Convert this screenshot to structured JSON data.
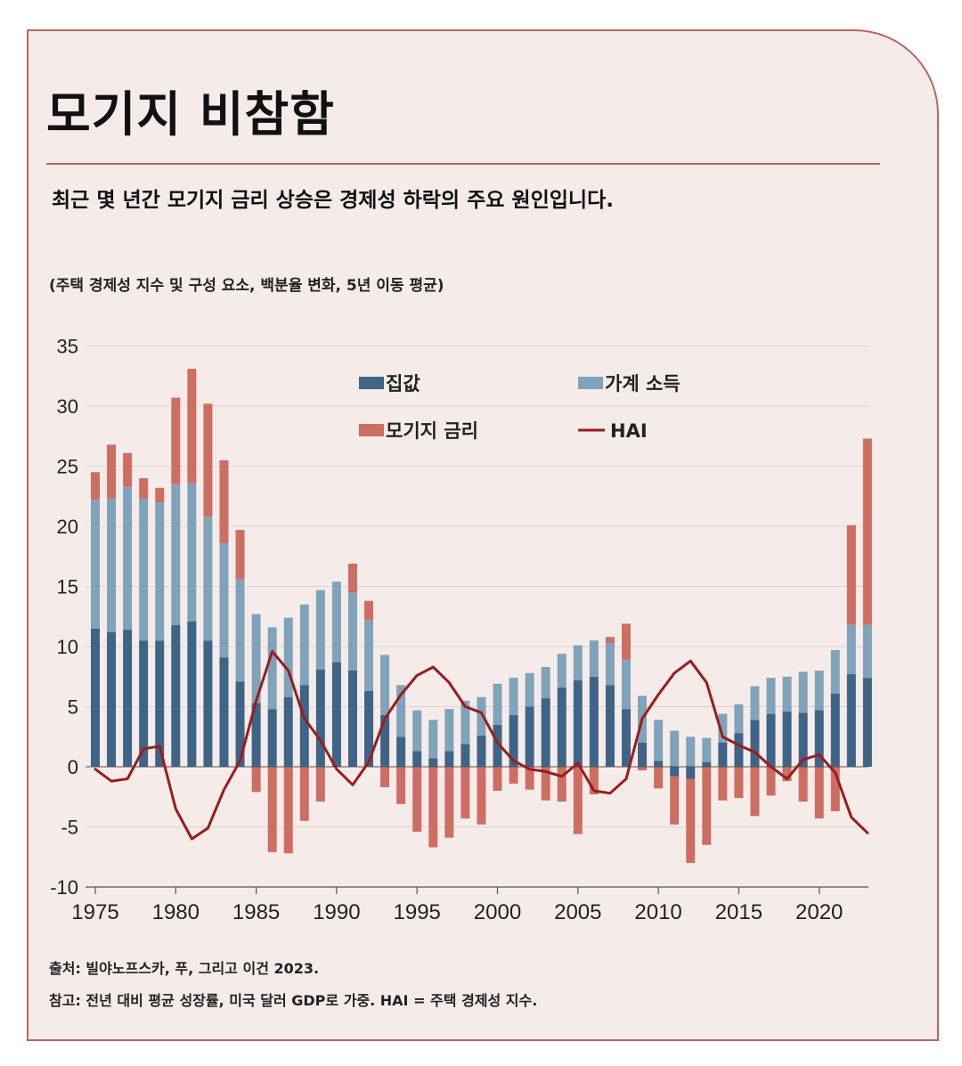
{
  "title": "모기지 비참함",
  "subtitle": "최근 몇 년간 모기지 금리 상승은 경제성 하락의 주요 원인입니다.",
  "note": "(주택 경제성 지수 및 구성 요소, 백분율 변화, 5년 이동 평균)",
  "footnotes": {
    "source": "출처: 빌야노프스카, 푸, 그리고 이건 2023.",
    "note": "참고: 전년 대비 평균 성장률, 미국 달러 GDP로 가중. HAI = 주택 경제성 지수."
  },
  "colors": {
    "house_price": "#3e6487",
    "household_income": "#7fa3bb",
    "mortgage_rate": "#cd6e62",
    "hai": "#9b1c1c",
    "card_bg": "#f5ecea",
    "border": "#b7675f"
  },
  "chart_data": {
    "type": "bar",
    "stacked": true,
    "x": [
      1975,
      1976,
      1977,
      1978,
      1979,
      1980,
      1981,
      1982,
      1983,
      1984,
      1985,
      1986,
      1987,
      1988,
      1989,
      1990,
      1991,
      1992,
      1993,
      1994,
      1995,
      1996,
      1997,
      1998,
      1999,
      2000,
      2001,
      2002,
      2003,
      2004,
      2005,
      2006,
      2007,
      2008,
      2009,
      2010,
      2011,
      2012,
      2013,
      2014,
      2015,
      2016,
      2017,
      2018,
      2019,
      2020,
      2021,
      2022,
      2023
    ],
    "x_ticks": [
      "1975",
      "1980",
      "1985",
      "1990",
      "1995",
      "2000",
      "2005",
      "2010",
      "2015",
      "2020"
    ],
    "y_ticks": [
      "35",
      "30",
      "25",
      "20",
      "15",
      "10",
      "5",
      "0",
      "-5",
      "-10"
    ],
    "ylim": [
      -10,
      35
    ],
    "grid": "horizontal",
    "legend_position": "top-center",
    "series": [
      {
        "name": "집값",
        "kind": "bar",
        "color": "#3e6487",
        "values": [
          11.5,
          11.2,
          11.4,
          10.5,
          10.5,
          11.8,
          12.1,
          10.5,
          9.1,
          7.1,
          5.3,
          4.8,
          5.8,
          6.8,
          8.1,
          8.7,
          8.0,
          6.3,
          4.3,
          2.5,
          1.3,
          0.7,
          1.3,
          1.9,
          2.6,
          3.5,
          4.3,
          5.0,
          5.7,
          6.6,
          7.2,
          7.5,
          6.8,
          4.8,
          2.0,
          0.5,
          -0.8,
          -1.0,
          0.4,
          2.0,
          2.8,
          3.9,
          4.4,
          4.6,
          4.5,
          4.7,
          6.1,
          7.7,
          7.4
        ]
      },
      {
        "name": "가계 소득",
        "kind": "bar",
        "color": "#7fa3bb",
        "values": [
          10.7,
          11.1,
          11.9,
          11.8,
          11.5,
          11.7,
          11.5,
          10.3,
          9.5,
          8.5,
          7.4,
          6.8,
          6.6,
          6.7,
          6.6,
          6.7,
          6.5,
          5.9,
          5.0,
          4.3,
          3.4,
          3.2,
          3.5,
          3.6,
          3.2,
          3.4,
          3.1,
          2.8,
          2.6,
          2.8,
          2.9,
          3.0,
          3.5,
          4.1,
          3.9,
          3.4,
          3.0,
          2.5,
          2.0,
          2.4,
          2.4,
          2.8,
          3.0,
          2.9,
          3.4,
          3.3,
          3.6,
          4.1,
          4.4
        ]
      },
      {
        "name": "모기지 금리",
        "kind": "bar",
        "color": "#cd6e62",
        "values": [
          2.3,
          4.5,
          2.8,
          1.7,
          1.2,
          7.2,
          9.5,
          9.4,
          6.9,
          4.1,
          -2.1,
          -7.1,
          -7.2,
          -4.5,
          -2.9,
          0,
          2.4,
          1.6,
          -1.7,
          -3.1,
          -5.4,
          -6.7,
          -5.9,
          -4.3,
          -4.8,
          -2.0,
          -1.4,
          -1.9,
          -2.8,
          -2.9,
          -5.6,
          -2.3,
          0.5,
          3.0,
          -0.3,
          -1.8,
          -4.0,
          -7.0,
          -6.5,
          -2.8,
          -2.6,
          -4.1,
          -2.4,
          -1.2,
          -2.9,
          -4.3,
          -3.7,
          8.3,
          15.5
        ]
      },
      {
        "name": "HAI",
        "kind": "line",
        "color": "#9b1c1c",
        "values": [
          -0.2,
          -1.2,
          -1.0,
          1.5,
          1.7,
          -3.5,
          -6.0,
          -5.1,
          -1.9,
          0.5,
          5.5,
          9.6,
          8.0,
          4.0,
          2.2,
          -0.2,
          -1.5,
          0.4,
          4.0,
          6.0,
          7.6,
          8.3,
          7.0,
          5.0,
          4.5,
          2.0,
          0.5,
          -0.2,
          -0.4,
          -0.8,
          0.3,
          -2.0,
          -2.2,
          -1.0,
          4.0,
          6.0,
          7.8,
          8.8,
          7.0,
          2.5,
          1.8,
          1.2,
          0.0,
          -1.0,
          0.6,
          1.0,
          -0.5,
          -4.2,
          -5.5
        ]
      }
    ]
  }
}
